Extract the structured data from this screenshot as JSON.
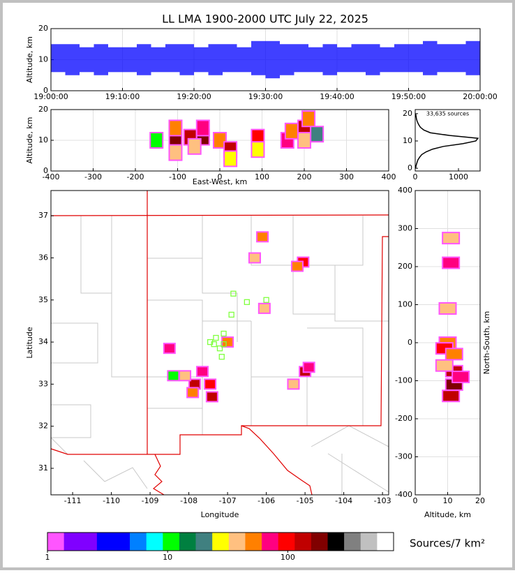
{
  "chart_data": [
    {
      "type": "range",
      "title": "LL LMA 1900-2000 UTC July 22, 2025",
      "ylabel": "Altitude, km",
      "color": "#0000ff",
      "grid": true,
      "x": [
        0,
        2,
        4,
        6,
        8,
        10,
        12,
        14,
        16,
        18,
        20,
        22,
        24,
        26,
        28,
        30,
        32,
        34,
        36,
        38,
        40,
        42,
        44,
        46,
        48,
        50,
        52,
        54,
        56,
        58
      ],
      "low": [
        6,
        5,
        6,
        5,
        6,
        6,
        5,
        6,
        6,
        5,
        6,
        5,
        6,
        6,
        5,
        4,
        5,
        6,
        6,
        5,
        6,
        6,
        5,
        6,
        6,
        6,
        5,
        6,
        6,
        5
      ],
      "high": [
        15,
        15,
        14,
        15,
        14,
        14,
        15,
        14,
        15,
        15,
        14,
        15,
        15,
        14,
        16,
        16,
        15,
        15,
        14,
        15,
        14,
        15,
        15,
        14,
        15,
        15,
        16,
        15,
        15,
        16
      ],
      "xlim": [
        0,
        60
      ],
      "xticks": [
        {
          "value": 0,
          "label": "19:00:00"
        },
        {
          "value": 10,
          "label": "19:10:00"
        },
        {
          "value": 20,
          "label": "19:20:00"
        },
        {
          "value": 30,
          "label": "19:30:00"
        },
        {
          "value": 40,
          "label": "19:40:00"
        },
        {
          "value": 50,
          "label": "19:50:00"
        },
        {
          "value": 60,
          "label": "20:00:00"
        }
      ],
      "ylim": [
        0,
        20
      ],
      "yticks": [
        0,
        10,
        20
      ]
    },
    {
      "type": "density",
      "ylabel": "Altitude, km",
      "xlabel": "East-West, km",
      "grid": true,
      "x": [
        -105,
        -105,
        -105,
        -70,
        -40,
        -40,
        0,
        25,
        25,
        90,
        90,
        160,
        170,
        200,
        210,
        200,
        -150,
        -60,
        230
      ],
      "y": [
        10,
        14,
        6,
        11,
        11,
        14,
        10,
        7,
        4,
        11,
        7,
        10,
        13,
        14,
        17,
        10,
        10,
        8,
        12
      ],
      "density": [
        200,
        60,
        40,
        150,
        200,
        80,
        60,
        120,
        30,
        100,
        30,
        80,
        50,
        150,
        60,
        40,
        10,
        40,
        20
      ],
      "xlim": [
        -400,
        400
      ],
      "xticks": [
        -400,
        -300,
        -200,
        -100,
        0,
        100,
        200,
        300,
        400
      ],
      "ylim": [
        0,
        20
      ],
      "yticks": [
        0,
        10,
        20
      ]
    },
    {
      "type": "line",
      "annotation": "33,635 sources",
      "color": "#000000",
      "x": [
        10,
        20,
        40,
        60,
        100,
        150,
        250,
        400,
        650,
        1100,
        1400,
        1450,
        800,
        350,
        200,
        120,
        80,
        50,
        30,
        20,
        10
      ],
      "y": [
        0,
        1,
        2,
        3,
        4,
        5,
        6,
        7,
        8,
        9,
        10,
        11,
        12,
        13,
        14,
        15,
        16,
        17,
        18,
        19,
        20
      ],
      "xlim": [
        0,
        1500
      ],
      "xticks": [
        0,
        1000
      ],
      "ylim": [
        -1,
        21.5
      ],
      "yticks": [
        0,
        10,
        20
      ]
    },
    {
      "type": "density",
      "xlabel": "Longitude",
      "ylabel": "Latitude",
      "x": [
        -106.1,
        -106.3,
        -105.05,
        -105.2,
        -106.05,
        -108.5,
        -107.85,
        -107.65,
        -107.45,
        -107.4,
        -107.0,
        -105.0,
        -104.9,
        -105.3,
        -108.1,
        -107.9,
        -108.4
      ],
      "y": [
        36.5,
        36.0,
        35.9,
        35.8,
        34.8,
        33.85,
        33.0,
        33.3,
        33.0,
        32.7,
        34.0,
        33.3,
        33.4,
        33.0,
        33.2,
        32.8,
        33.2
      ],
      "density": [
        60,
        40,
        100,
        50,
        40,
        80,
        150,
        80,
        100,
        120,
        60,
        150,
        80,
        40,
        40,
        60,
        10
      ],
      "stations": {
        "color": "#80ff40",
        "x": [
          -107.1,
          -107.3,
          -107.45,
          -107.2,
          -107.15,
          -106.85,
          -106.5,
          -106.0,
          -106.9,
          -107.1,
          -107.35
        ],
        "y": [
          33.95,
          34.1,
          34.0,
          33.85,
          33.65,
          35.15,
          34.95,
          35.0,
          34.65,
          34.2,
          33.95
        ]
      },
      "xlim": [
        -111.56,
        -102.84
      ],
      "xticks": [
        -111,
        -110,
        -109,
        -108,
        -107,
        -106,
        -105,
        -104,
        -103
      ],
      "ylim": [
        30.37,
        37.6
      ],
      "yticks": [
        31,
        32,
        33,
        34,
        35,
        36,
        37
      ]
    },
    {
      "type": "density",
      "xlabel": "Altitude, km",
      "ylabel": "North-South, km",
      "grid": true,
      "x": [
        11,
        11,
        10,
        10,
        9,
        12,
        12,
        12,
        11,
        9,
        14
      ],
      "y": [
        275,
        210,
        90,
        0,
        -15,
        -30,
        -75,
        -110,
        -140,
        -60,
        -90
      ],
      "density": [
        40,
        80,
        40,
        60,
        100,
        60,
        150,
        200,
        150,
        40,
        80
      ],
      "xlim": [
        0,
        20
      ],
      "xticks": [
        0,
        10,
        20
      ],
      "ylim": [
        -400,
        400
      ],
      "yticks": [
        -400,
        -300,
        -200,
        -100,
        0,
        100,
        200,
        300,
        400
      ]
    },
    {
      "type": "colorbar",
      "label": "Sources/7 km²",
      "log": true,
      "colors": [
        "#ff55ff",
        "#8000ff",
        "#8000ff",
        "#0000ff",
        "#0000ff",
        "#0080ff",
        "#00ffff",
        "#00ff00",
        "#008040",
        "#408080",
        "#ffff00",
        "#ffc080",
        "#ff8000",
        "#ff0080",
        "#ff0000",
        "#c00000",
        "#800000",
        "#000000",
        "#808080",
        "#c0c0c0",
        "#ffffff"
      ],
      "xlim": [
        1,
        760
      ],
      "xticks": [
        1,
        10,
        100
      ]
    }
  ]
}
